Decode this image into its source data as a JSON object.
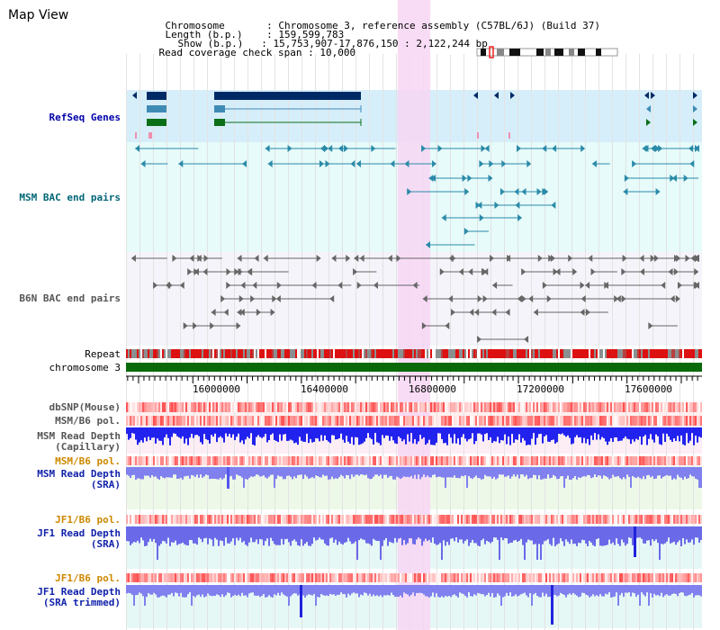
{
  "header": {
    "title": "Map View",
    "rows": [
      {
        "key": "Chromosome",
        "sep": ":",
        "value": "Chromosome 3, reference assembly (C57BL/6J) (Build 37)"
      },
      {
        "key": "Length (b.p.)",
        "sep": ":",
        "value": "159,599,783"
      },
      {
        "key": "Show (b.p.)",
        "sep": ":",
        "value": "15,753,907-17,876,150 : 2,122,244 bp"
      },
      {
        "key": "Read coverage check span",
        "sep": ":",
        "value": "10,000"
      }
    ]
  },
  "tracks": {
    "refseq": {
      "label": "RefSeq Genes",
      "color": "#0000aa"
    },
    "msm_bac": {
      "label": "MSM BAC end pairs",
      "color": "#006677"
    },
    "b6n_bac": {
      "label": "B6N BAC end pairs",
      "color": "#555555"
    },
    "repeat": {
      "label": "Repeat"
    },
    "chromosome": {
      "label": "chromosome 3"
    },
    "dbsnp": {
      "label": "dbSNP(Mouse)"
    },
    "msm_b6_pol_1": {
      "label": "MSM/B6 pol."
    },
    "msm_depth_cap": {
      "label": "MSM Read Depth",
      "sub": "(Capillary)"
    },
    "msm_b6_pol_2": {
      "label": "MSM/B6 pol."
    },
    "msm_depth_sra": {
      "label": "MSM Read Depth",
      "sub": "(SRA)"
    },
    "jf1_b6_pol_1": {
      "label": "JF1/B6 pol."
    },
    "jf1_depth_sra": {
      "label": "JF1 Read Depth",
      "sub": "(SRA)"
    },
    "jf1_b6_pol_2": {
      "label": "JF1/B6 pol."
    },
    "jf1_depth_trim": {
      "label": "JF1 Read Depth",
      "sub": "(SRA trimmed)"
    }
  },
  "axis": {
    "range": [
      15753907,
      17876150
    ],
    "ticks": [
      "16000000",
      "16400000",
      "16800000",
      "17200000",
      "17600000"
    ]
  },
  "highlight_range": [
    16755000,
    16875000
  ],
  "colors": {
    "refseq_bg": "#d6eefa",
    "bac_bg": "#e6fbfa",
    "b6n_bg": "#f4f4fa",
    "highlight": "#f7d6f3",
    "gene_dark": "#002a66",
    "gene_mid": "#3f8bb6",
    "gene_green": "#0b6f18",
    "chrom_green": "#0a6a0a",
    "repeat_red": "#dd1111",
    "depth_blue": "#2222ee",
    "depth_light": "#8080ee",
    "pol_label_orange": "#cc8800",
    "depth_label_blue": "#1122aa"
  }
}
